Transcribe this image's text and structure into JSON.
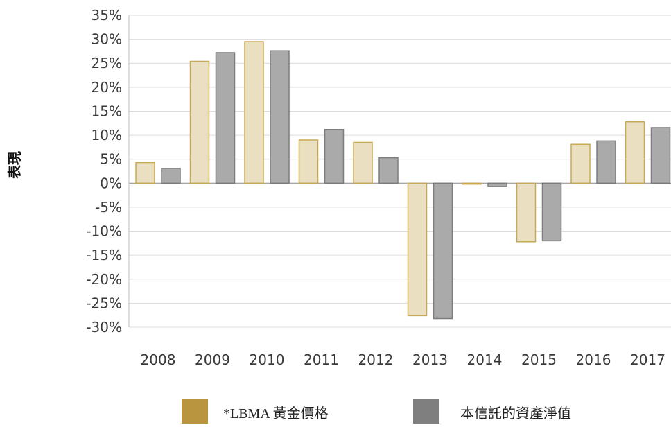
{
  "chart_data": {
    "type": "bar",
    "ylabel": "表現",
    "categories": [
      "2008",
      "2009",
      "2010",
      "2011",
      "2012",
      "2013",
      "2014",
      "2015",
      "2016",
      "2017"
    ],
    "ylim": [
      -30,
      35
    ],
    "yticks": [
      35,
      30,
      25,
      20,
      15,
      10,
      5,
      0,
      -5,
      -10,
      -15,
      -20,
      -25,
      -30
    ],
    "ytick_labels": [
      "35%",
      "30%",
      "25%",
      "20%",
      "15%",
      "10%",
      "5%",
      "0%",
      "-5%",
      "-10%",
      "-15%",
      "-20%",
      "-25%",
      "-30%"
    ],
    "grid": true,
    "legend_position": "bottom",
    "series": [
      {
        "name": "*LBMA 黃金價格",
        "values": [
          4.3,
          25.4,
          29.5,
          9.0,
          8.5,
          -27.6,
          -0.2,
          -12.2,
          8.1,
          12.8
        ],
        "fill": "#eadfc0",
        "stroke": "#c8a852",
        "legend_color": "#b9953f"
      },
      {
        "name": "本信託的資產淨值",
        "values": [
          3.1,
          27.2,
          27.6,
          11.2,
          5.3,
          -28.2,
          -0.7,
          -12.0,
          8.8,
          11.6
        ],
        "fill": "#aaaaaa",
        "stroke": "#7c7c7c",
        "legend_color": "#7f7f7f"
      }
    ]
  }
}
